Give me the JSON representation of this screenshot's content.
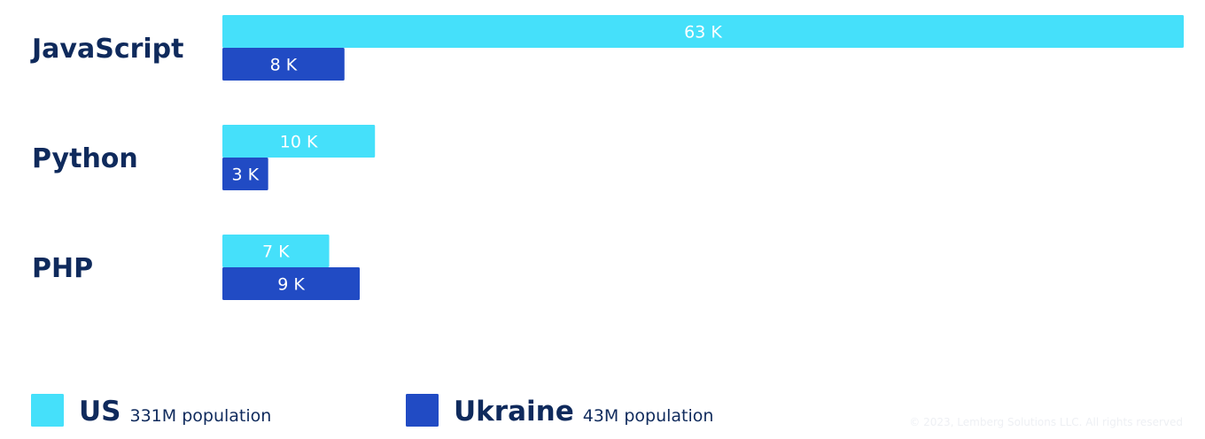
{
  "chart_data": {
    "type": "bar",
    "orientation": "horizontal",
    "categories": [
      "JavaScript",
      "Python",
      "PHP"
    ],
    "series": [
      {
        "name": "US",
        "note": "331M population",
        "color": "#45e0fa",
        "values": [
          63,
          10,
          7
        ],
        "labels": [
          "63 K",
          "10 K",
          "7 K"
        ]
      },
      {
        "name": "Ukraine",
        "note": "43M population",
        "color": "#214bc4",
        "values": [
          8,
          3,
          9
        ],
        "labels": [
          "8 K",
          "3 K",
          "9 K"
        ]
      }
    ],
    "unit": "K",
    "xlim": [
      0,
      63
    ],
    "grid": false,
    "legend": "bottom-left"
  },
  "copyright": "© 2023, Lemberg Solutions LLC. All rights reserved"
}
